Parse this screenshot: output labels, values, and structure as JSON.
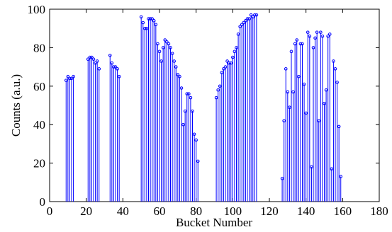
{
  "chart_data": {
    "type": "stem",
    "xlabel": "Bucket Number",
    "ylabel": "Counts (a.u.)",
    "xlim": [
      0,
      180
    ],
    "xticks": [
      0,
      20,
      40,
      60,
      80,
      100,
      120,
      140,
      160,
      180
    ],
    "ylim": [
      0,
      100
    ],
    "yticks": [
      0,
      20,
      40,
      60,
      80,
      100
    ],
    "color": "#0000ff",
    "x": [
      9,
      10,
      11,
      12,
      13,
      21,
      22,
      23,
      24,
      25,
      26,
      27,
      33,
      34,
      35,
      36,
      37,
      38,
      50,
      51,
      52,
      53,
      54,
      55,
      56,
      57,
      58,
      59,
      60,
      61,
      62,
      63,
      64,
      65,
      66,
      67,
      68,
      69,
      70,
      71,
      72,
      73,
      74,
      75,
      76,
      77,
      78,
      79,
      80,
      81,
      91,
      92,
      93,
      94,
      95,
      96,
      97,
      98,
      99,
      100,
      101,
      102,
      103,
      104,
      105,
      106,
      107,
      108,
      109,
      110,
      111,
      112,
      113,
      127,
      128,
      129,
      130,
      131,
      132,
      133,
      134,
      135,
      136,
      137,
      138,
      139,
      140,
      141,
      142,
      143,
      144,
      145,
      146,
      147,
      148,
      149,
      150,
      151,
      152,
      153,
      154,
      155,
      156,
      157,
      158,
      159
    ],
    "values": [
      63,
      65,
      64,
      64,
      65,
      74,
      75,
      75,
      74,
      72,
      73,
      69,
      76,
      72,
      70,
      70,
      69,
      65,
      96,
      93,
      90,
      90,
      95,
      95,
      95,
      94,
      92,
      82,
      78,
      73,
      80,
      84,
      83,
      82,
      80,
      77,
      73,
      70,
      66,
      65,
      59,
      40,
      47,
      56,
      56,
      54,
      47,
      35,
      32,
      21,
      54,
      58,
      60,
      67,
      69,
      70,
      73,
      72,
      72,
      75,
      78,
      80,
      87,
      91,
      92,
      93,
      94,
      95,
      95,
      97,
      96,
      97,
      97,
      12,
      42,
      69,
      57,
      49,
      78,
      57,
      82,
      84,
      65,
      82,
      82,
      61,
      46,
      88,
      86,
      18,
      80,
      85,
      88,
      42,
      88,
      86,
      51,
      58,
      86,
      87,
      17,
      73,
      69,
      62,
      39,
      13
    ]
  }
}
